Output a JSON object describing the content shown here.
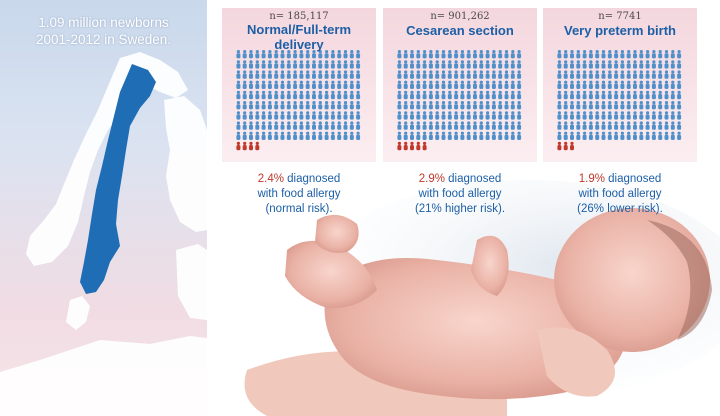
{
  "left": {
    "title_line1": "1.09 million newborns",
    "title_line2": "2001-2012 in Sweden."
  },
  "colors": {
    "icon_blue": "#4f8fca",
    "icon_red": "#c0392b",
    "title_blue": "#1d5fa6",
    "sweden_fill": "#1f6db5",
    "land": "#ffffff"
  },
  "panels": [
    {
      "n_label": "n= 185,117",
      "title_line1": "Normal/Full-term",
      "title_line2": "delivery",
      "red_icons": 4,
      "pct": "2.4%",
      "line1_rest": " diagnosed",
      "line2": "with food allergy",
      "line3": "(normal risk)."
    },
    {
      "n_label": "n= 901,262",
      "title_line1": "Cesarean section",
      "title_line2": "",
      "red_icons": 5,
      "pct": "2.9%",
      "line1_rest": " diagnosed",
      "line2": "with food allergy",
      "line3": "(21% higher risk)."
    },
    {
      "n_label": "n= 7741",
      "title_line1": "Very preterm birth",
      "title_line2": "",
      "red_icons": 3,
      "pct": "1.9%",
      "line1_rest": " diagnosed",
      "line2": "with food allergy",
      "line3": "(26% lower risk)."
    }
  ]
}
